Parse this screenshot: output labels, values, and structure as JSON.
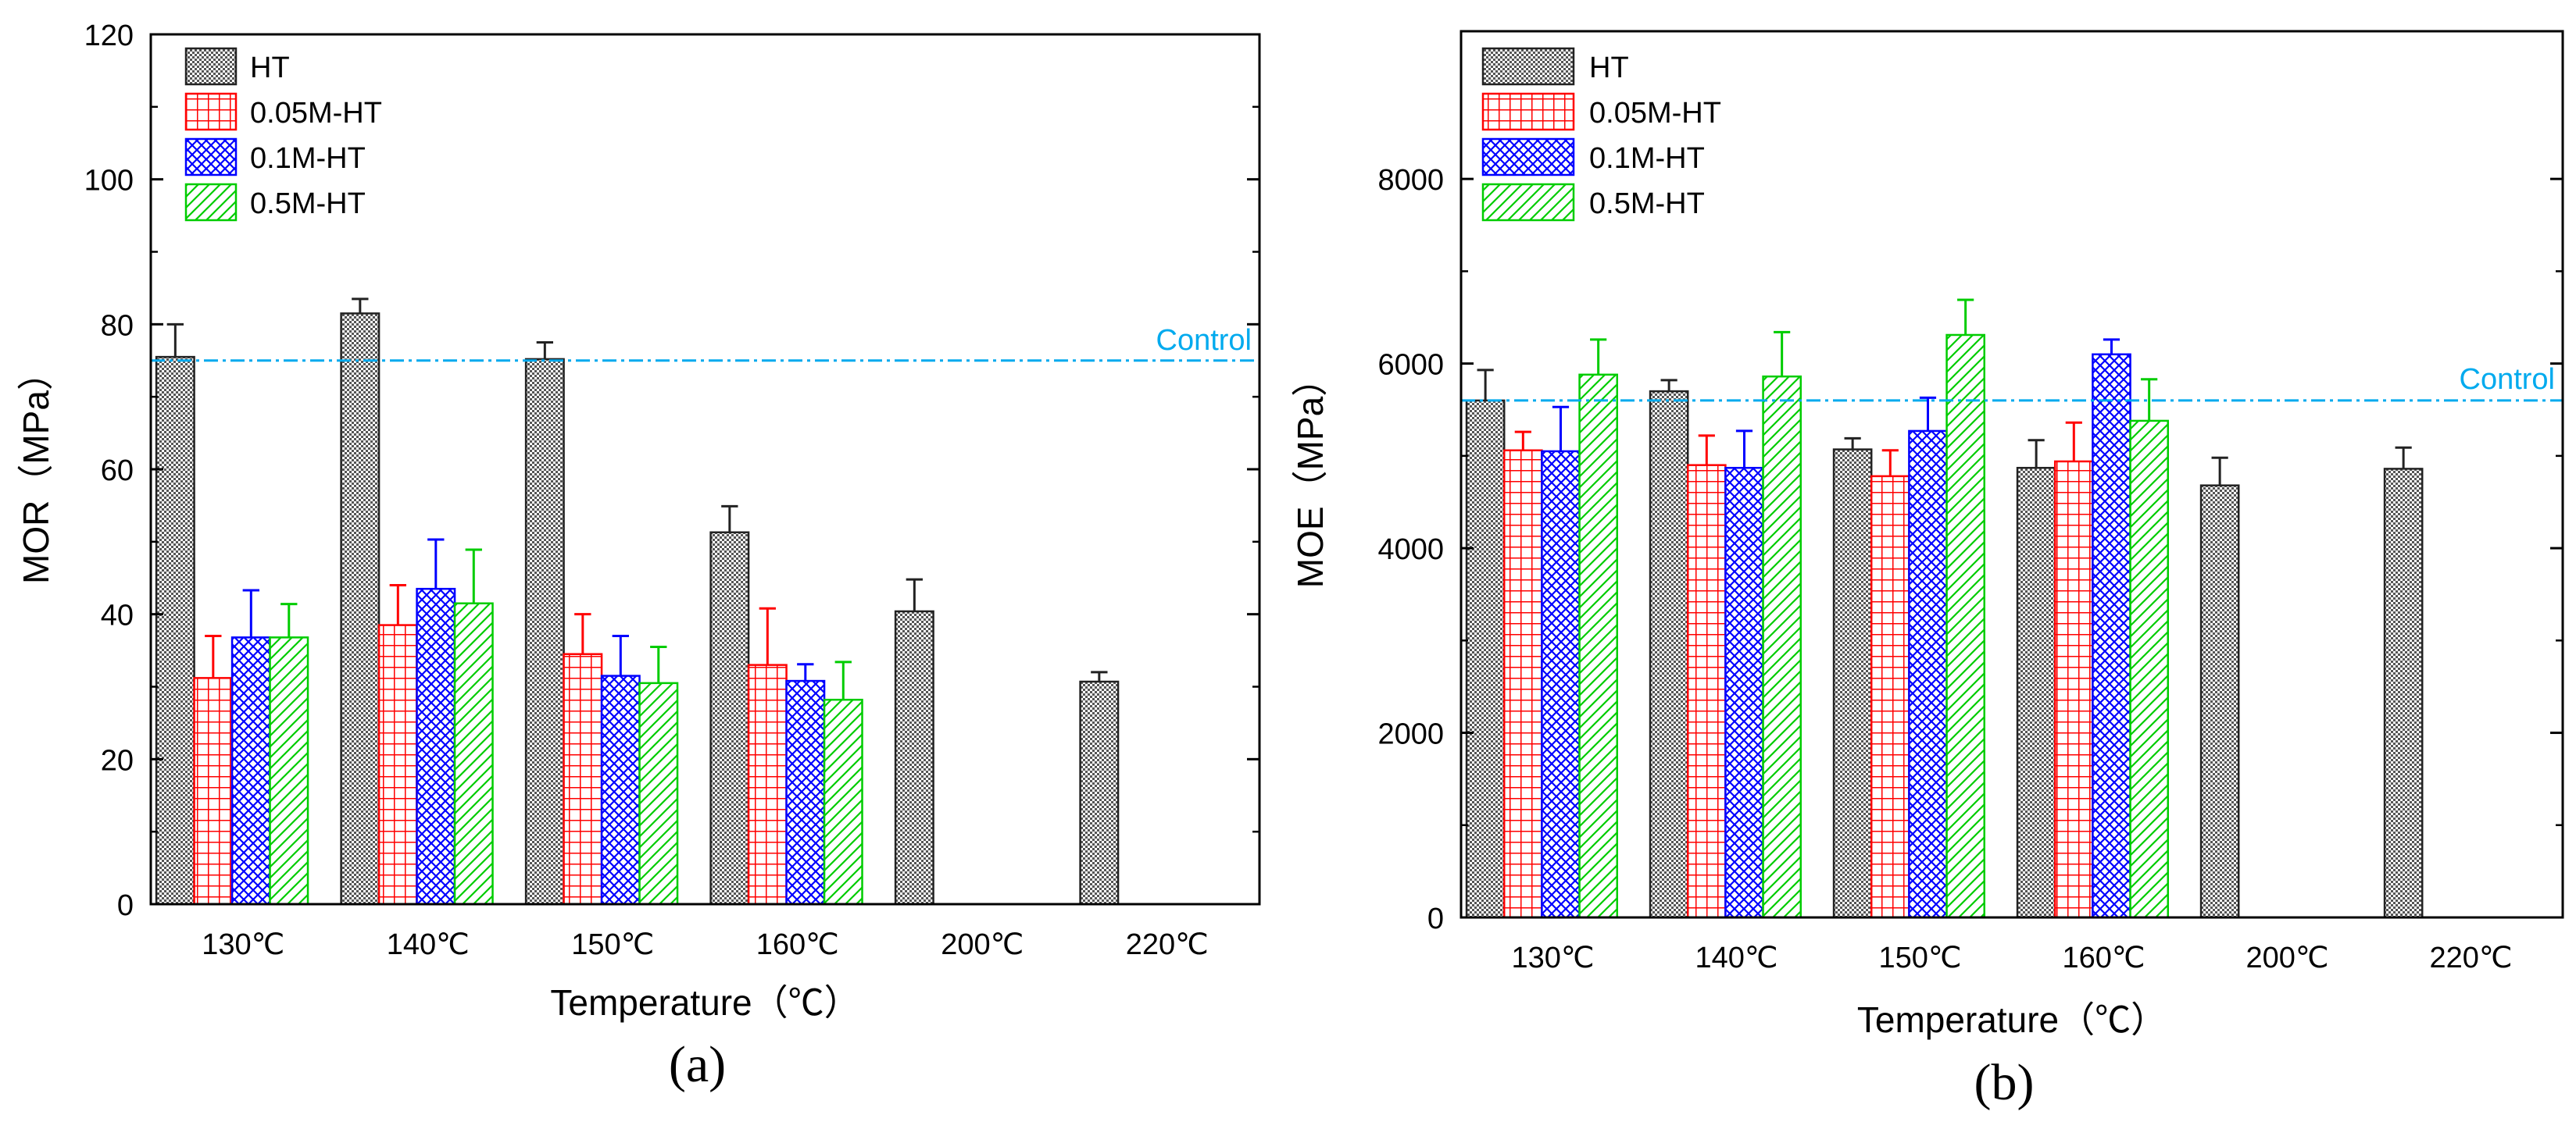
{
  "chart_data": [
    {
      "panel": "a",
      "type": "bar",
      "title": "",
      "xlabel": "Temperature（℃）",
      "ylabel": "MOR（MPa）",
      "ylim": [
        0,
        120
      ],
      "yticks": [
        0,
        20,
        40,
        60,
        80,
        100,
        120
      ],
      "caption": "(a)",
      "categories": [
        "130℃",
        "140℃",
        "150℃",
        "160℃",
        "200℃",
        "220℃"
      ],
      "control": {
        "label": "Control",
        "value": 75
      },
      "legend_position": "top-left",
      "series": [
        {
          "name": "HT",
          "values": [
            75.5,
            81.5,
            75.2,
            51.3,
            40.4,
            30.7
          ],
          "errors": [
            4.5,
            2.0,
            2.3,
            3.6,
            4.4,
            1.3
          ]
        },
        {
          "name": "0.05M-HT",
          "values": [
            31.2,
            38.5,
            34.5,
            33.0,
            null,
            null
          ],
          "errors": [
            5.8,
            5.5,
            5.5,
            7.8,
            null,
            null
          ]
        },
        {
          "name": "0.1M-HT",
          "values": [
            36.8,
            43.5,
            31.5,
            30.8,
            null,
            null
          ],
          "errors": [
            6.5,
            6.8,
            5.5,
            2.3,
            null,
            null
          ]
        },
        {
          "name": "0.5M-HT",
          "values": [
            36.8,
            41.5,
            30.5,
            28.2,
            null,
            null
          ],
          "errors": [
            4.6,
            7.4,
            5.0,
            5.2,
            null,
            null
          ]
        }
      ]
    },
    {
      "panel": "b",
      "type": "bar",
      "title": "",
      "xlabel": "Temperature（℃）",
      "ylabel": "MOE（MPa）",
      "ylim": [
        0,
        9600
      ],
      "yticks": [
        0,
        2000,
        4000,
        6000,
        8000
      ],
      "caption": "(b)",
      "categories": [
        "130℃",
        "140℃",
        "150℃",
        "160℃",
        "200℃",
        "220℃"
      ],
      "control": {
        "label": "Control",
        "value": 5600
      },
      "legend_position": "top-left",
      "series": [
        {
          "name": "HT",
          "values": [
            5600,
            5700,
            5070,
            4870,
            4680,
            4860
          ],
          "errors": [
            330,
            120,
            120,
            300,
            300,
            230
          ]
        },
        {
          "name": "0.05M-HT",
          "values": [
            5060,
            4900,
            4780,
            4940,
            null,
            null
          ],
          "errors": [
            200,
            320,
            280,
            420,
            null,
            null
          ]
        },
        {
          "name": "0.1M-HT",
          "values": [
            5050,
            4870,
            5270,
            6100,
            null,
            null
          ],
          "errors": [
            480,
            400,
            360,
            160,
            null,
            null
          ]
        },
        {
          "name": "0.5M-HT",
          "values": [
            5880,
            5860,
            6310,
            5380,
            null,
            null
          ],
          "errors": [
            380,
            480,
            380,
            450,
            null,
            null
          ]
        }
      ]
    }
  ],
  "style": {
    "series_colors": [
      "#222222",
      "#ff0000",
      "#0000ff",
      "#00cc00"
    ],
    "series_patterns": [
      "dots",
      "grid",
      "crosshatch",
      "diagonal"
    ],
    "control_color": "#00aaee",
    "axis_color": "#000000"
  }
}
